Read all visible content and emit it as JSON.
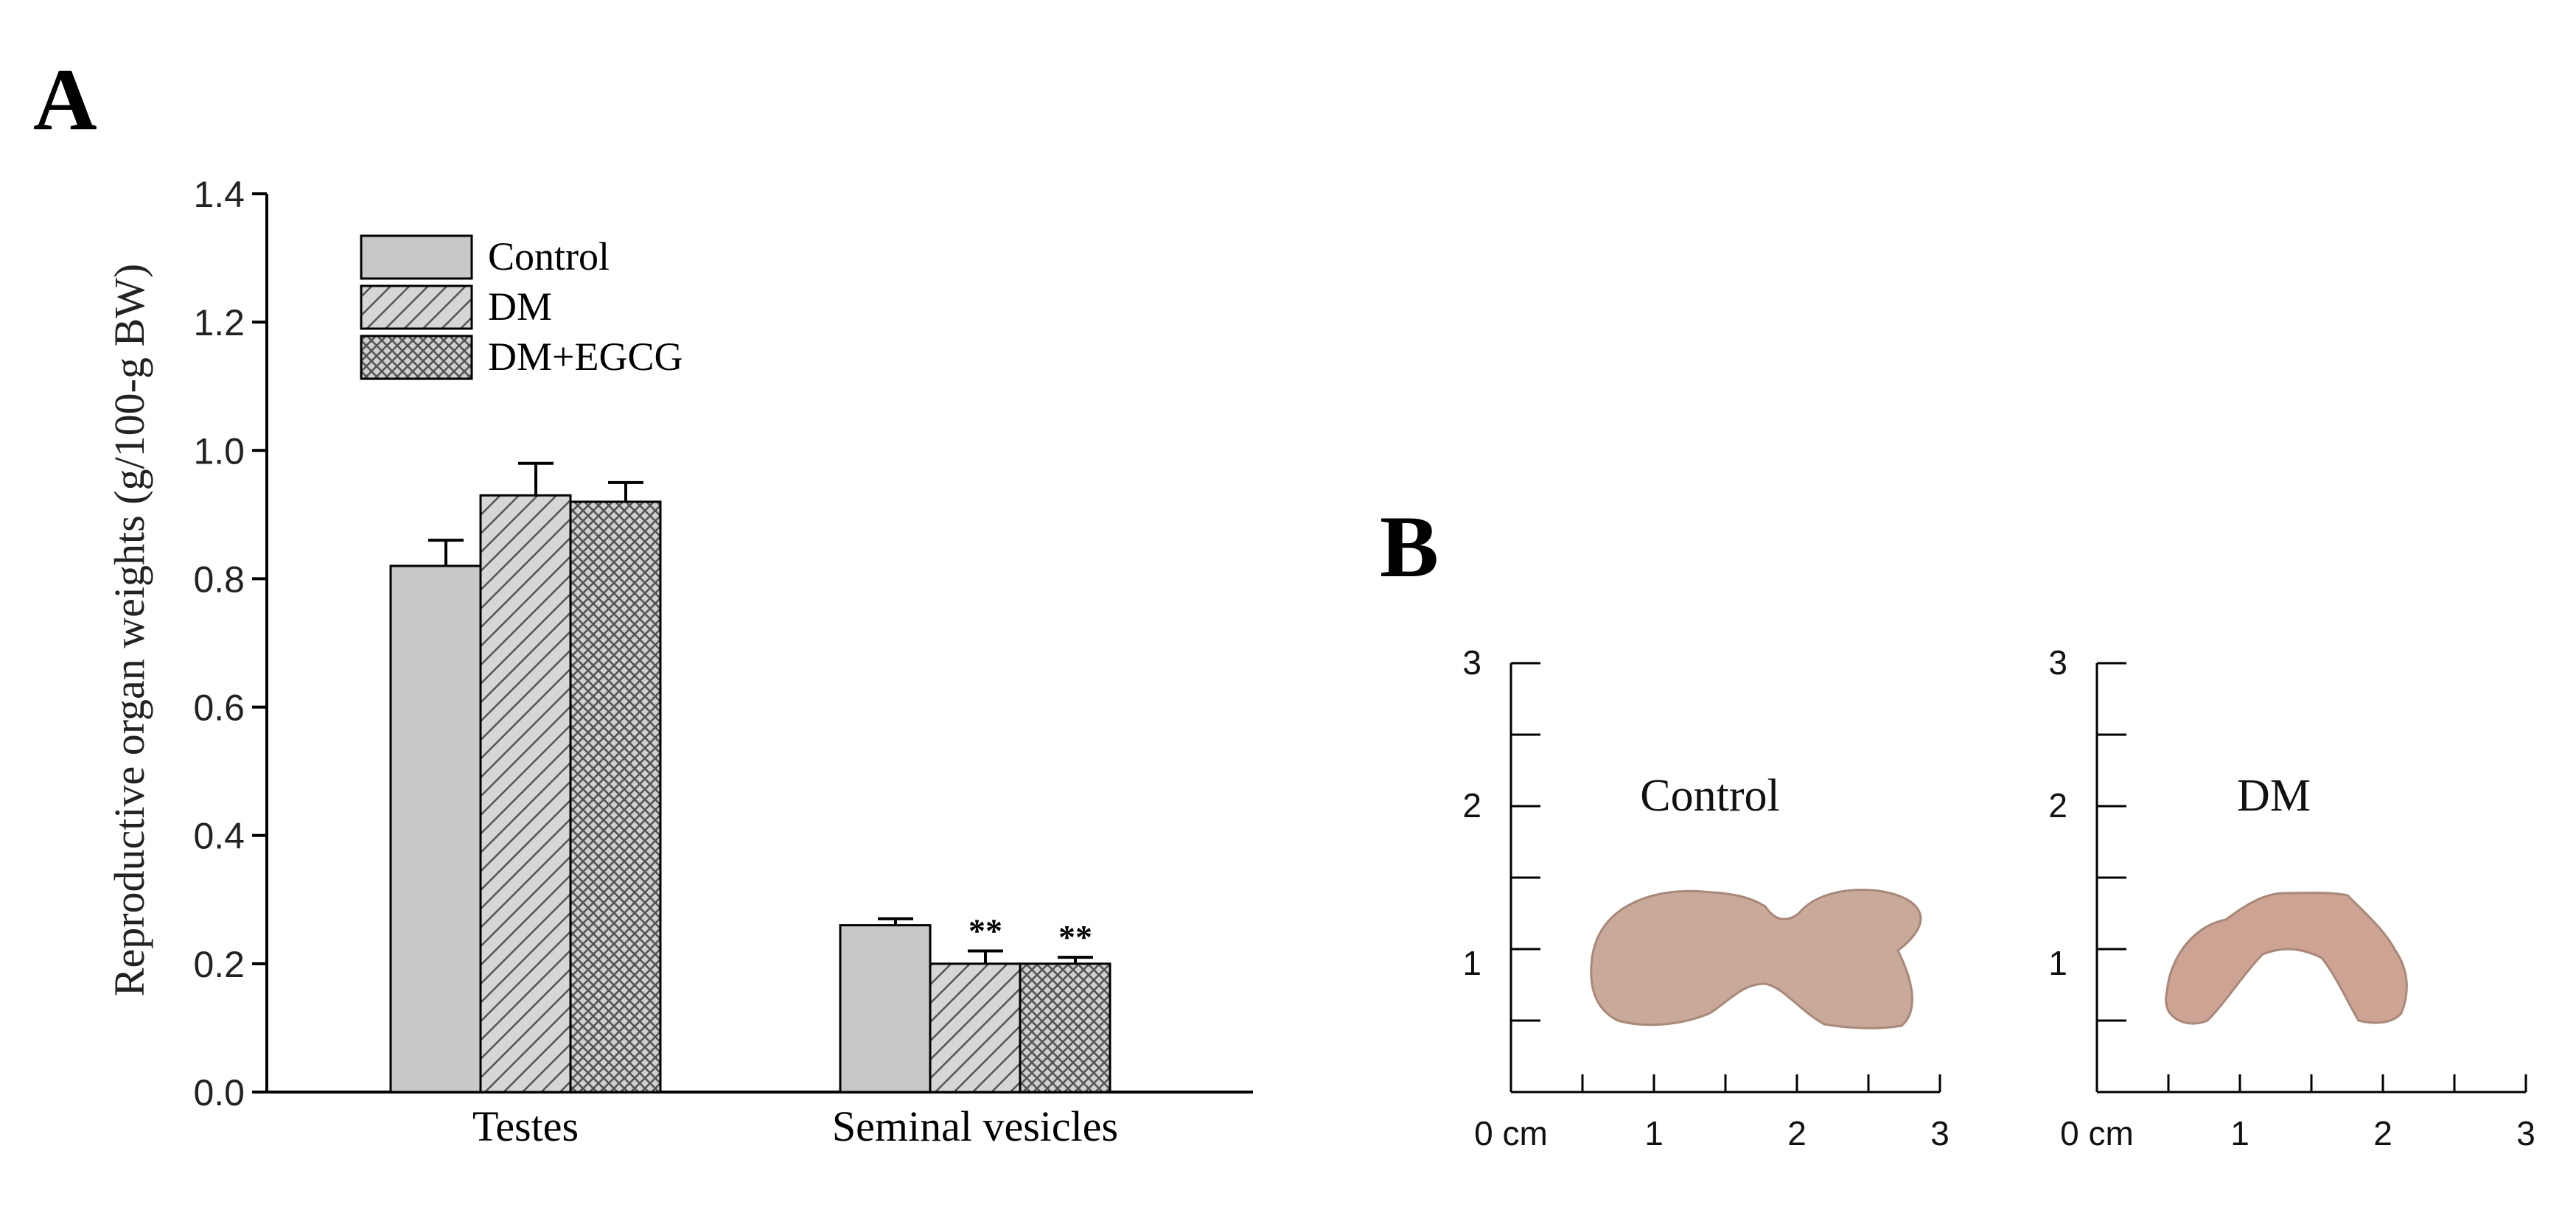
{
  "panel_a": {
    "label": "A"
  },
  "panel_b": {
    "label": "B",
    "photos": [
      {
        "title": "Control",
        "x_ticks": [
          "0 cm",
          "1",
          "2",
          "3"
        ],
        "y_ticks": [
          "1",
          "2",
          "3"
        ],
        "tissue_color": "#c8a99a"
      },
      {
        "title": "DM",
        "x_ticks": [
          "0 cm",
          "1",
          "2",
          "3"
        ],
        "y_ticks": [
          "1",
          "2",
          "3"
        ],
        "tissue_color": "#cda394"
      }
    ]
  },
  "chart_data": {
    "type": "bar",
    "title": "",
    "xlabel": "",
    "ylabel": "Reproductive organ weights  (g/100-g BW)",
    "ylim": [
      0,
      1.4
    ],
    "yticks": [
      0.0,
      0.2,
      0.4,
      0.6,
      0.8,
      1.0,
      1.2,
      1.4
    ],
    "ytick_labels": [
      "0.0",
      "0.2",
      "0.4",
      "0.6",
      "0.8",
      "1.0",
      "1.2",
      "1.4"
    ],
    "categories": [
      "Testes",
      "Seminal vesicles"
    ],
    "legend_position": "top-left",
    "series": [
      {
        "name": "Control",
        "pattern": "solid",
        "values": [
          0.82,
          0.26
        ],
        "errors": [
          0.04,
          0.01
        ],
        "annotations": [
          "",
          ""
        ]
      },
      {
        "name": "DM",
        "pattern": "diagonal",
        "values": [
          0.93,
          0.2
        ],
        "errors": [
          0.05,
          0.02
        ],
        "annotations": [
          "",
          "**"
        ]
      },
      {
        "name": "DM+EGCG",
        "pattern": "crosshatch",
        "values": [
          0.92,
          0.2
        ],
        "errors": [
          0.03,
          0.01
        ],
        "annotations": [
          "",
          "**"
        ]
      }
    ],
    "colors": {
      "bar_fill": "#c8c8c8",
      "stroke": "#000000",
      "hatch": "#555555"
    }
  }
}
